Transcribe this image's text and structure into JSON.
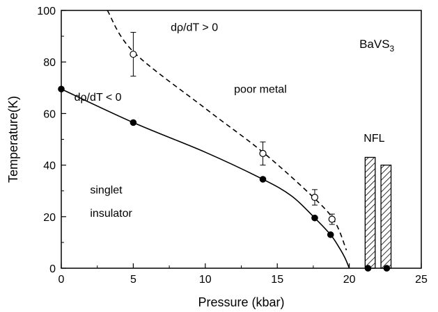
{
  "chart_data": {
    "type": "scatter",
    "xlabel": "Pressure (kbar)",
    "ylabel": "Temperature(K)",
    "xlim": [
      0,
      25
    ],
    "ylim": [
      0,
      100
    ],
    "xticks": [
      0,
      5,
      10,
      15,
      20,
      25
    ],
    "yticks": [
      0,
      20,
      40,
      60,
      80,
      100
    ],
    "grid": false,
    "series": [
      {
        "marker": "filled-circle",
        "x": [
          0,
          5,
          14,
          17.6,
          18.7,
          21.3,
          22.6
        ],
        "y": [
          69.5,
          56.5,
          34.5,
          19.5,
          13,
          0,
          0
        ]
      },
      {
        "marker": "open-circle",
        "x": [
          5,
          14,
          17.6,
          18.8
        ],
        "y": [
          83,
          44.5,
          27.5,
          19
        ],
        "y_err": [
          8.5,
          4.5,
          3,
          2
        ]
      }
    ],
    "curves": [
      {
        "style": "solid",
        "x": [
          0,
          5,
          10,
          14,
          16,
          17.6,
          18.7,
          19.3,
          19.7,
          20
        ],
        "y": [
          69.5,
          56.5,
          45,
          34.5,
          28,
          19.5,
          13,
          8,
          4,
          0
        ]
      },
      {
        "style": "dashed",
        "x": [
          3.2,
          5,
          10,
          14,
          17.6,
          19,
          19.8
        ],
        "y": [
          100,
          84,
          62,
          45,
          27,
          18,
          7
        ]
      }
    ],
    "bars": [
      {
        "x0": 21.1,
        "x1": 21.8,
        "y": 43,
        "fill": "hatched"
      },
      {
        "x0": 22.2,
        "x1": 22.9,
        "y": 40,
        "fill": "hatched"
      }
    ],
    "annotations": [
      {
        "text": "dρ/dT > 0",
        "x": 7.6,
        "y": 92
      },
      {
        "text": "dρ/dT < 0",
        "x": 0.9,
        "y": 65
      },
      {
        "text": "poor metal",
        "x": 12.0,
        "y": 68
      },
      {
        "text": "NFL",
        "x": 21.0,
        "y": 49
      },
      {
        "text": "singlet",
        "x": 2.0,
        "y": 29
      },
      {
        "text": "insulator",
        "x": 2.0,
        "y": 20
      }
    ],
    "compound": {
      "base": "BaVS",
      "sub": "3"
    }
  }
}
